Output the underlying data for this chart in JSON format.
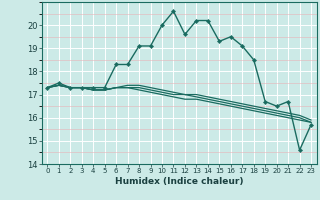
{
  "xlabel": "Humidex (Indice chaleur)",
  "ylabel": "",
  "background_color": "#cceae7",
  "grid_color": "#ffffff",
  "line_color": "#1a6b60",
  "xlim": [
    -0.5,
    23.5
  ],
  "ylim": [
    14,
    21
  ],
  "yticks": [
    14,
    15,
    16,
    17,
    18,
    19,
    20
  ],
  "xtick_labels": [
    "0",
    "1",
    "2",
    "3",
    "4",
    "5",
    "6",
    "7",
    "8",
    "9",
    "10",
    "11",
    "12",
    "13",
    "14",
    "15",
    "16",
    "17",
    "18",
    "19",
    "20",
    "21",
    "22",
    "23"
  ],
  "xticks": [
    0,
    1,
    2,
    3,
    4,
    5,
    6,
    7,
    8,
    9,
    10,
    11,
    12,
    13,
    14,
    15,
    16,
    17,
    18,
    19,
    20,
    21,
    22,
    23
  ],
  "series": [
    [
      17.3,
      17.5,
      17.3,
      17.3,
      17.3,
      17.3,
      18.3,
      18.3,
      19.1,
      19.1,
      20.0,
      20.6,
      19.6,
      20.2,
      20.2,
      19.3,
      19.5,
      19.1,
      18.5,
      16.7,
      16.5,
      16.7,
      14.6,
      15.7
    ],
    [
      17.3,
      17.4,
      17.3,
      17.3,
      17.2,
      17.2,
      17.3,
      17.3,
      17.2,
      17.1,
      17.0,
      16.9,
      16.8,
      16.8,
      16.7,
      16.6,
      16.5,
      16.4,
      16.3,
      16.2,
      16.1,
      16.0,
      15.9,
      15.8
    ],
    [
      17.3,
      17.4,
      17.3,
      17.3,
      17.2,
      17.2,
      17.3,
      17.3,
      17.3,
      17.2,
      17.1,
      17.0,
      17.0,
      16.9,
      16.8,
      16.7,
      16.6,
      16.5,
      16.4,
      16.3,
      16.2,
      16.1,
      16.0,
      15.8
    ],
    [
      17.3,
      17.4,
      17.3,
      17.3,
      17.2,
      17.2,
      17.3,
      17.4,
      17.4,
      17.3,
      17.2,
      17.1,
      17.0,
      17.0,
      16.9,
      16.8,
      16.7,
      16.6,
      16.5,
      16.4,
      16.3,
      16.2,
      16.1,
      15.9
    ]
  ],
  "markers": [
    true,
    false,
    false,
    false
  ],
  "linewidths": [
    1.0,
    0.9,
    0.9,
    0.9
  ],
  "marker_size": 2.2,
  "marker_style": "D"
}
